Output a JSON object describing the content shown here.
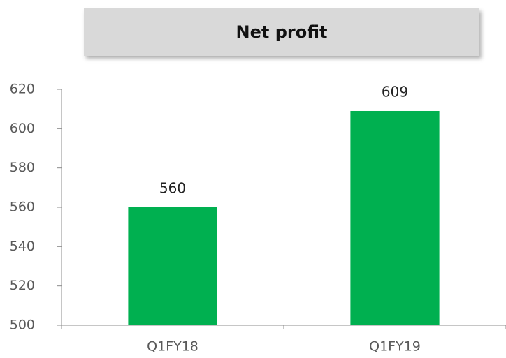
{
  "chart_data": {
    "type": "bar",
    "title": "Net profit",
    "categories": [
      "Q1FY18",
      "Q1FY19"
    ],
    "values": [
      560,
      609
    ],
    "color": "#00b050",
    "ylim": [
      500,
      620
    ],
    "yticks": [
      500,
      520,
      540,
      560,
      580,
      600,
      620
    ],
    "grid": false
  }
}
